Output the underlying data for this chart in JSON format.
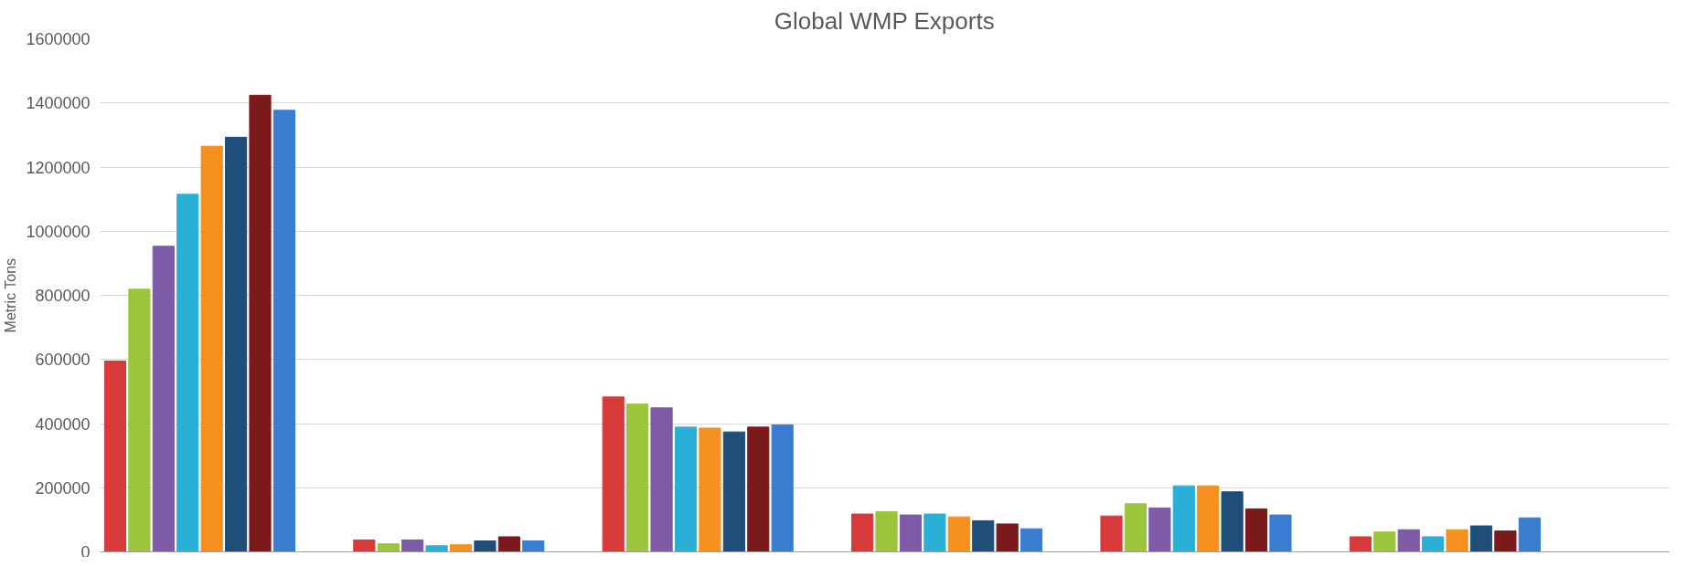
{
  "chart_data": {
    "type": "bar",
    "title": "Global WMP Exports",
    "ylabel": "Metric Tons",
    "categories": [
      null,
      null,
      null,
      null,
      null,
      null
    ],
    "series": [
      {
        "color": "#d63a3a",
        "values": [
          595000,
          37000,
          483000,
          118000,
          112000,
          47000
        ]
      },
      {
        "color": "#9bc53d",
        "values": [
          819000,
          25000,
          461000,
          125000,
          150000,
          62000
        ]
      },
      {
        "color": "#7d5ba6",
        "values": [
          953000,
          37000,
          449000,
          115000,
          137000,
          69000
        ]
      },
      {
        "color": "#2ab0d6",
        "values": [
          1115000,
          19000,
          389000,
          118000,
          206000,
          47000
        ]
      },
      {
        "color": "#f39020",
        "values": [
          1265000,
          22000,
          386000,
          109000,
          206000,
          69000
        ]
      },
      {
        "color": "#1f4e79",
        "values": [
          1293000,
          34000,
          374000,
          97000,
          187000,
          81000
        ]
      },
      {
        "color": "#7b1a1a",
        "values": [
          1424000,
          47000,
          389000,
          87000,
          134000,
          65000
        ]
      },
      {
        "color": "#3a7dd0",
        "values": [
          1377000,
          34000,
          396000,
          72000,
          115000,
          106000
        ]
      }
    ],
    "ylim": [
      0,
      1600000
    ],
    "yticks": [
      0,
      200000,
      400000,
      600000,
      800000,
      1000000,
      1200000,
      1400000,
      1600000
    ],
    "grid": "y"
  }
}
